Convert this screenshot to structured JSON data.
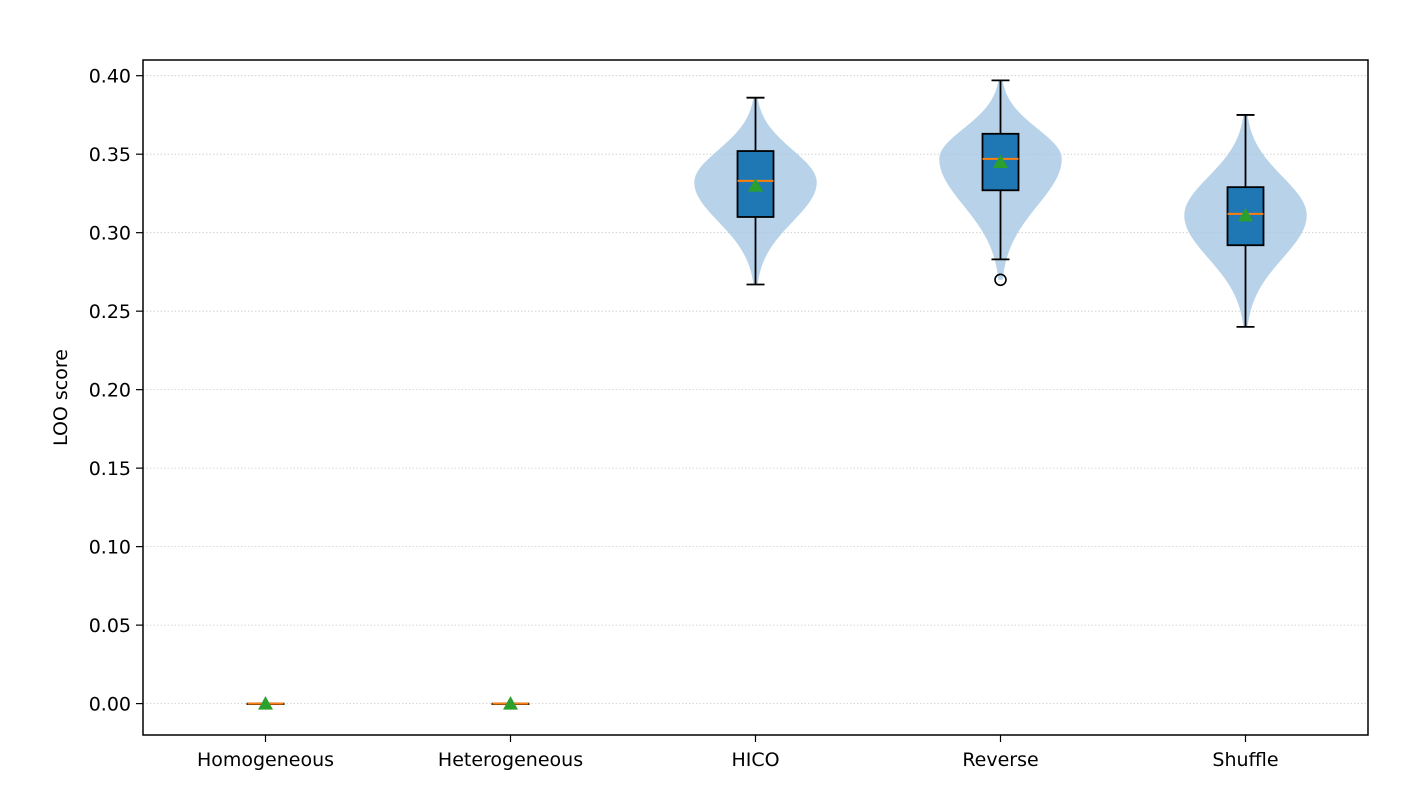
{
  "chart_data": {
    "type": "violin",
    "title": "",
    "xlabel": "",
    "ylabel": "LOO score",
    "ylim": [
      -0.02,
      0.41
    ],
    "grid": "horizontal-dotted",
    "categories": [
      "Homogeneous",
      "Heterogeneous",
      "HICO",
      "Reverse",
      "Shuffle"
    ],
    "yticks": [
      "0.00",
      "0.05",
      "0.10",
      "0.15",
      "0.20",
      "0.25",
      "0.30",
      "0.35",
      "0.40"
    ],
    "groups": [
      {
        "category": "Homogeneous",
        "min": 0.0,
        "q1": 0.0,
        "median": 0.0,
        "q3": 0.0,
        "max": 0.0,
        "mean": 0.0,
        "outliers": [],
        "violin": false
      },
      {
        "category": "Heterogeneous",
        "min": 0.0,
        "q1": 0.0,
        "median": 0.0,
        "q3": 0.0,
        "max": 0.0,
        "mean": 0.0,
        "outliers": [],
        "violin": false
      },
      {
        "category": "HICO",
        "min": 0.267,
        "q1": 0.31,
        "median": 0.333,
        "q3": 0.352,
        "max": 0.386,
        "mean": 0.33,
        "outliers": [],
        "violin": true,
        "violin_mode": 0.332
      },
      {
        "category": "Reverse",
        "min": 0.283,
        "q1": 0.327,
        "median": 0.347,
        "q3": 0.363,
        "max": 0.397,
        "mean": 0.345,
        "outliers": [
          0.27
        ],
        "violin": true,
        "violin_mode": 0.347
      },
      {
        "category": "Shuffle",
        "min": 0.24,
        "q1": 0.292,
        "median": 0.312,
        "q3": 0.329,
        "max": 0.375,
        "mean": 0.311,
        "outliers": [],
        "violin": true,
        "violin_mode": 0.311
      }
    ],
    "colors": {
      "box": "#1f77b4",
      "violin": "#a6c8e4",
      "median": "#ff7f0e",
      "mean": "#2ca02c",
      "grid": "#cccccc"
    }
  }
}
